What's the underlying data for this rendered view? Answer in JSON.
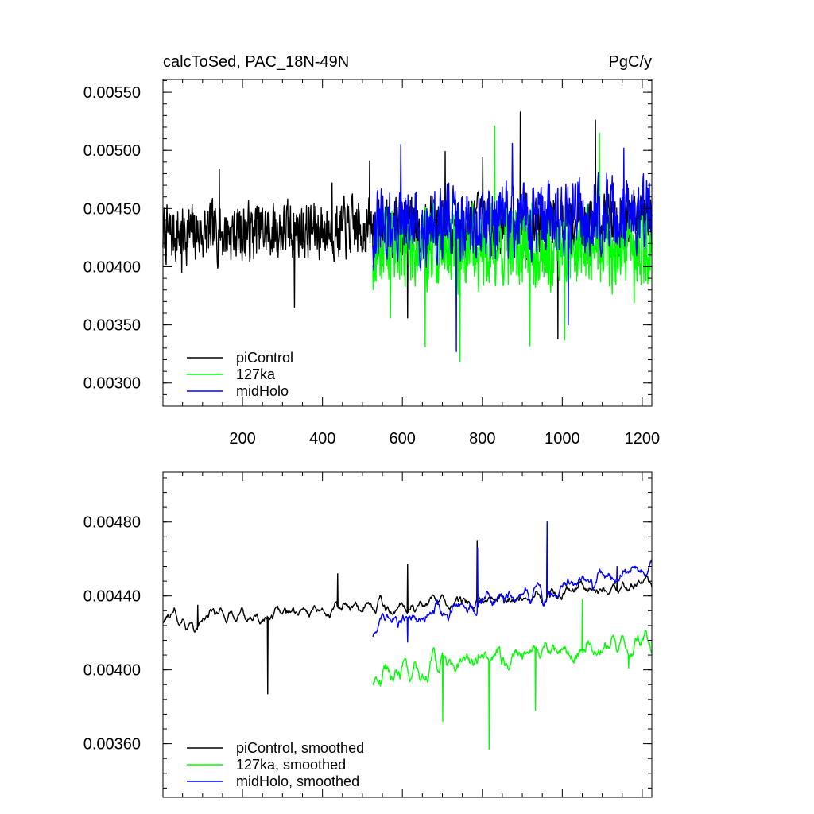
{
  "chart_data": [
    {
      "type": "line",
      "title_left": "calcToSed, PAC_18N-49N",
      "title_right": "PgC/y",
      "xlim": [
        1,
        1224
      ],
      "ylim": [
        0.0028,
        0.00561
      ],
      "x_ticks": [
        200,
        400,
        600,
        800,
        1000,
        1200
      ],
      "x_tick_labels": [
        "200",
        "400",
        "600",
        "800",
        "1000",
        "1200"
      ],
      "y_ticks": [
        0.003,
        0.0035,
        0.004,
        0.0045,
        0.005,
        0.0055
      ],
      "y_tick_labels": [
        "0.00300",
        "0.00350",
        "0.00400",
        "0.00450",
        "0.00500",
        "0.00550"
      ],
      "legend_position": "bottom-left",
      "series": [
        {
          "name": "piControl",
          "color": "#000000",
          "x_start": 1,
          "x_end": 1224,
          "mean": 0.00428,
          "amplitude": 0.00022,
          "trend_end": 0.0044,
          "seed": 7,
          "values": [
            0.00395,
            0.00484,
            0.00452,
            0.00365,
            0.00472,
            0.00491,
            0.00356,
            0.00499,
            0.00494,
            0.00533,
            0.00338,
            0.00526,
            0.00453
          ]
        },
        {
          "name": "127ka",
          "color": "#00ff00",
          "x_start": 526,
          "x_end": 1224,
          "mean": 0.00418,
          "amplitude": 0.00032,
          "trend_end": 0.00418,
          "seed": 19,
          "values": [
            0.00356,
            0.00331,
            0.00318,
            0.00521,
            0.00332,
            0.00337,
            0.00515,
            0.00369
          ]
        },
        {
          "name": "midHolo",
          "color": "#0000ff",
          "x_start": 526,
          "x_end": 1224,
          "mean": 0.00432,
          "amplitude": 0.00028,
          "trend_end": 0.00448,
          "seed": 31,
          "values": [
            0.00505,
            0.00327,
            0.00506,
            0.0035,
            0.00502
          ]
        }
      ]
    },
    {
      "type": "line",
      "title_left": "",
      "title_right": "",
      "xlim": [
        1,
        1224
      ],
      "ylim": [
        0.00331,
        0.00507
      ],
      "x_ticks": [
        200,
        400,
        600,
        800,
        1000,
        1200
      ],
      "y_ticks": [
        0.0036,
        0.004,
        0.0044,
        0.0048
      ],
      "y_tick_labels": [
        "0.00360",
        "0.00400",
        "0.00440",
        "0.00480"
      ],
      "legend_position": "bottom-left",
      "series": [
        {
          "name": "piControl, smoothed",
          "color": "#000000",
          "x_start": 1,
          "x_end": 1224,
          "mean": 0.00426,
          "amplitude": 9e-05,
          "trend_end": 0.00445,
          "seed": 7,
          "values": [
            0.00435,
            0.00387,
            0.00452,
            0.00457,
            0.0047,
            0.00478,
            0.00448
          ]
        },
        {
          "name": "127ka, smoothed",
          "color": "#00ff00",
          "x_start": 526,
          "x_end": 1224,
          "mean": 0.00398,
          "amplitude": 0.00014,
          "trend_end": 0.00415,
          "seed": 19,
          "values": [
            0.004,
            0.00372,
            0.00357,
            0.00378,
            0.00438,
            0.00401
          ]
        },
        {
          "name": "midHolo, smoothed",
          "color": "#0000ff",
          "x_start": 526,
          "x_end": 1224,
          "mean": 0.00424,
          "amplitude": 0.00012,
          "trend_end": 0.00455,
          "seed": 31,
          "values": [
            0.00415,
            0.00466,
            0.0048,
            0.00456
          ]
        }
      ]
    }
  ]
}
